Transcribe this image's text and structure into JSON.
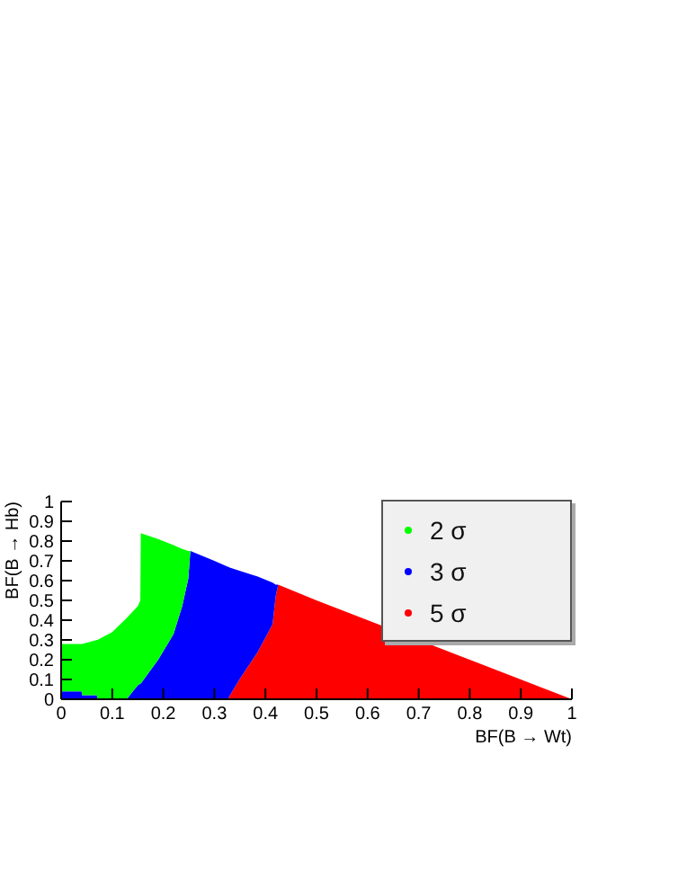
{
  "chart_data": {
    "type": "area",
    "stacked": true,
    "xlabel": "BF(B → Wt)",
    "ylabel": "BF(B → Hb)",
    "x": [
      0,
      0.04,
      0.041,
      0.07,
      0.071,
      0.1,
      0.128,
      0.15,
      0.155,
      0.156,
      0.19,
      0.22,
      0.237,
      0.249,
      0.253,
      0.3,
      0.326,
      0.349,
      0.385,
      0.414,
      0.42,
      0.425,
      0.5,
      0.6,
      0.7,
      0.8,
      0.9,
      1
    ],
    "series": [
      {
        "name": "5 σ",
        "color": "#ff0000",
        "values": [
          0,
          0,
          0,
          0,
          0,
          0,
          0,
          0,
          0,
          0,
          0,
          0,
          0,
          0,
          0,
          0,
          0,
          0.1,
          0.24,
          0.38,
          0.52,
          0.58,
          0.5,
          0.4,
          0.3,
          0.2,
          0.1,
          0
        ]
      },
      {
        "name": "3 σ",
        "color": "#0000ff",
        "values": [
          0.04,
          0.04,
          0.02,
          0.02,
          0,
          0,
          0,
          0.07,
          0.08,
          0.08,
          0.2,
          0.33,
          0.47,
          0.61,
          0.75,
          0.7,
          0.67,
          0.55,
          0.38,
          0.21,
          0.06,
          0,
          0,
          0,
          0,
          0,
          0,
          0
        ]
      },
      {
        "name": "2 σ",
        "color": "#00ff00",
        "values": [
          0.24,
          0.24,
          0.26,
          0.28,
          0.3,
          0.34,
          0.41,
          0.4,
          0.42,
          0.76,
          0.61,
          0.45,
          0.29,
          0.14,
          0,
          0,
          0,
          0,
          0,
          0,
          0,
          0,
          0,
          0,
          0,
          0,
          0,
          0
        ]
      }
    ],
    "xlim": [
      0,
      1
    ],
    "xticks": [
      0,
      0.1,
      0.2,
      0.3,
      0.4,
      0.5,
      0.6,
      0.7,
      0.8,
      0.9,
      1
    ],
    "ylim": [
      0,
      1
    ],
    "yticks": [
      0,
      0.1,
      0.2,
      0.3,
      0.4,
      0.5,
      0.6,
      0.7,
      0.8,
      0.9,
      1
    ],
    "legend": "top right"
  }
}
